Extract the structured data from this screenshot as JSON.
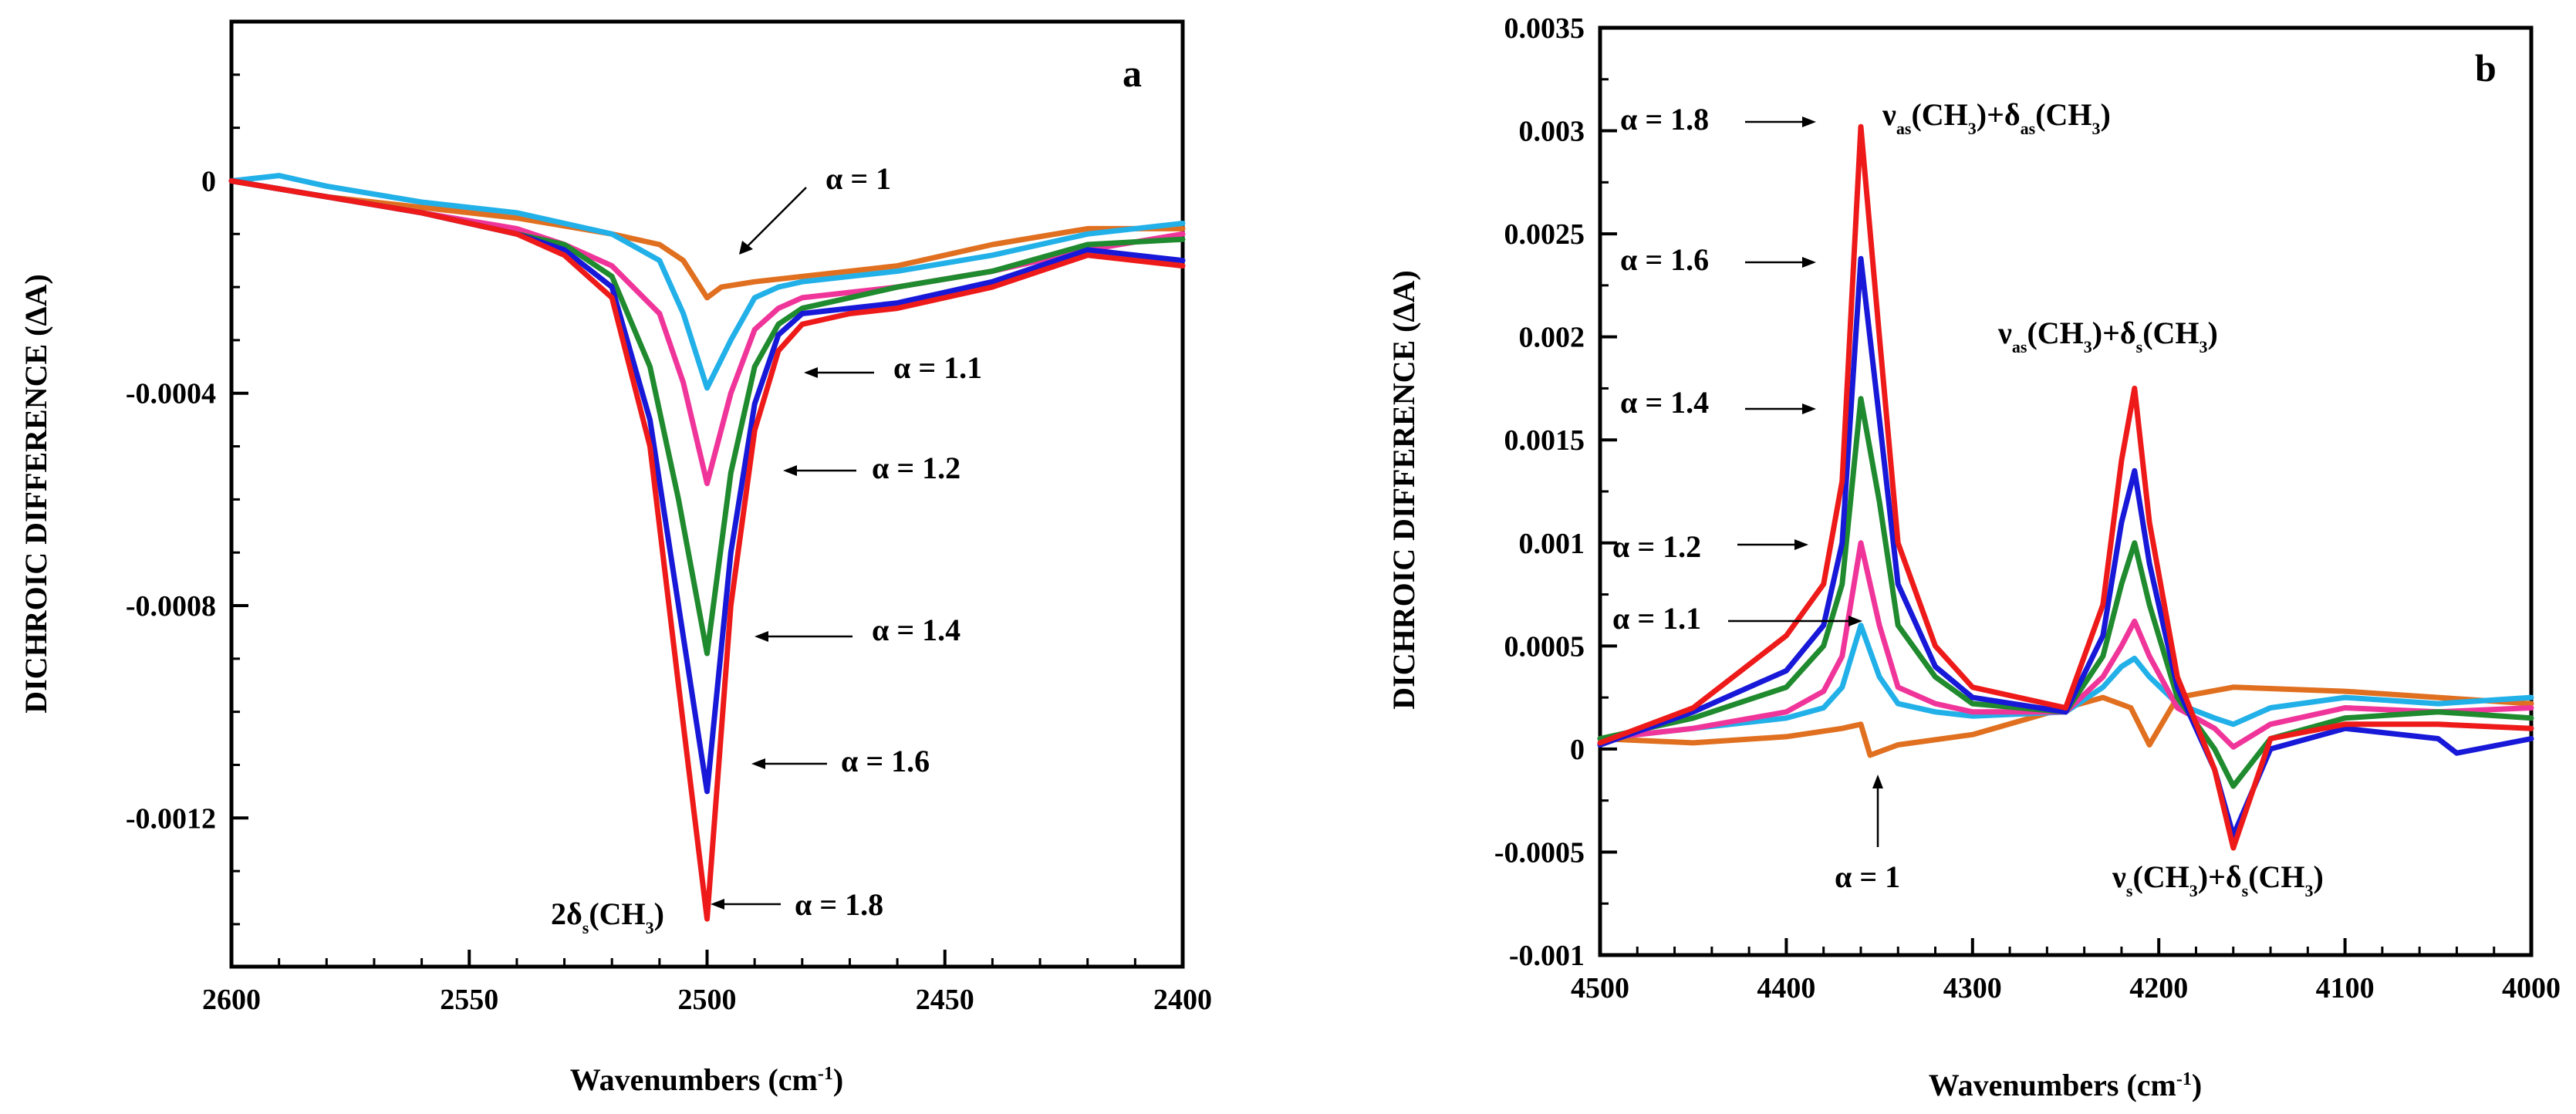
{
  "chart_data": [
    {
      "type": "line",
      "panel_label": "a",
      "xlabel": "Wavenumbers (cm",
      "xlabel_sup": "-1",
      "xlabel_end": ")",
      "ylabel": "DICHROIC DIFFERENCE (ΔA)",
      "xlim": [
        2600,
        2400
      ],
      "ylim": [
        -0.00148,
        0.0003
      ],
      "xticks": [
        2600,
        2550,
        2500,
        2450,
        2400
      ],
      "xtick_labels": [
        "2600",
        "2550",
        "2500",
        "2450",
        "2400"
      ],
      "yticks": [
        0,
        -0.0004,
        -0.0008,
        -0.0012
      ],
      "ytick_labels": [
        "0",
        "-0.0004",
        "-0.0008",
        "-0.0012"
      ],
      "peak_label": {
        "main": "2δ",
        "sub1": "s",
        "mid": "(CH",
        "sub2": "3",
        "end": ")"
      },
      "annotations": [
        "α = 1",
        "α = 1.1",
        "α = 1.2",
        "α = 1.4",
        "α = 1.6",
        "α = 1.8"
      ],
      "series": [
        {
          "name": "α = 1",
          "color": "#e07020",
          "x": [
            2600,
            2580,
            2560,
            2540,
            2520,
            2510,
            2505,
            2500,
            2497,
            2490,
            2480,
            2460,
            2440,
            2420,
            2400
          ],
          "values": [
            0,
            -3e-05,
            -5e-05,
            -7e-05,
            -0.0001,
            -0.00012,
            -0.00015,
            -0.00022,
            -0.0002,
            -0.00019,
            -0.00018,
            -0.00016,
            -0.00012,
            -9e-05,
            -9e-05
          ]
        },
        {
          "name": "α = 1.1",
          "color": "#22b0e8",
          "x": [
            2600,
            2590,
            2580,
            2560,
            2540,
            2530,
            2520,
            2510,
            2505,
            2500,
            2495,
            2490,
            2485,
            2480,
            2470,
            2460,
            2440,
            2420,
            2400
          ],
          "values": [
            0,
            1e-05,
            -1e-05,
            -4e-05,
            -6e-05,
            -8e-05,
            -0.0001,
            -0.00015,
            -0.00025,
            -0.00039,
            -0.0003,
            -0.00022,
            -0.0002,
            -0.00019,
            -0.00018,
            -0.00017,
            -0.00014,
            -0.0001,
            -8e-05
          ]
        },
        {
          "name": "α = 1.2",
          "color": "#f0359a",
          "x": [
            2600,
            2580,
            2560,
            2540,
            2530,
            2520,
            2510,
            2505,
            2500,
            2495,
            2490,
            2485,
            2480,
            2470,
            2460,
            2440,
            2420,
            2400
          ],
          "values": [
            0,
            -3e-05,
            -6e-05,
            -9e-05,
            -0.00012,
            -0.00016,
            -0.00025,
            -0.00038,
            -0.00057,
            -0.0004,
            -0.00028,
            -0.00024,
            -0.00022,
            -0.00021,
            -0.0002,
            -0.00017,
            -0.00013,
            -0.0001
          ]
        },
        {
          "name": "α = 1.4",
          "color": "#1f8a2e",
          "x": [
            2600,
            2580,
            2560,
            2540,
            2530,
            2520,
            2512,
            2506,
            2500,
            2495,
            2490,
            2485,
            2480,
            2470,
            2460,
            2440,
            2420,
            2400
          ],
          "values": [
            0,
            -3e-05,
            -6e-05,
            -0.0001,
            -0.00012,
            -0.00018,
            -0.00035,
            -0.0006,
            -0.00089,
            -0.00055,
            -0.00035,
            -0.00027,
            -0.00024,
            -0.00022,
            -0.0002,
            -0.00017,
            -0.00012,
            -0.00011
          ]
        },
        {
          "name": "α = 1.6",
          "color": "#1818d8",
          "x": [
            2600,
            2580,
            2560,
            2540,
            2530,
            2520,
            2512,
            2506,
            2500,
            2495,
            2490,
            2485,
            2480,
            2470,
            2460,
            2440,
            2420,
            2400
          ],
          "values": [
            0,
            -3e-05,
            -6e-05,
            -0.0001,
            -0.00013,
            -0.0002,
            -0.00045,
            -0.0008,
            -0.00115,
            -0.0007,
            -0.00042,
            -0.00029,
            -0.00025,
            -0.00024,
            -0.00023,
            -0.00019,
            -0.00013,
            -0.00015
          ]
        },
        {
          "name": "α = 1.8",
          "color": "#ee1a1a",
          "x": [
            2600,
            2580,
            2560,
            2540,
            2530,
            2520,
            2512,
            2506,
            2500,
            2495,
            2490,
            2485,
            2480,
            2470,
            2460,
            2440,
            2420,
            2400
          ],
          "values": [
            0,
            -3e-05,
            -6e-05,
            -0.0001,
            -0.00014,
            -0.00022,
            -0.0005,
            -0.00095,
            -0.00139,
            -0.0008,
            -0.00047,
            -0.00032,
            -0.00027,
            -0.00025,
            -0.00024,
            -0.0002,
            -0.00014,
            -0.00016
          ]
        }
      ]
    },
    {
      "type": "line",
      "panel_label": "b",
      "xlabel": "Wavenumbers (cm",
      "xlabel_sup": "-1",
      "xlabel_end": ")",
      "ylabel": "DICHROIC DIFFERENCE (ΔA)",
      "xlim": [
        4500,
        4000
      ],
      "ylim": [
        -0.001,
        0.0035
      ],
      "xticks": [
        4500,
        4400,
        4300,
        4200,
        4100,
        4000
      ],
      "xtick_labels": [
        "4500",
        "4400",
        "4300",
        "4200",
        "4100",
        "4000"
      ],
      "yticks": [
        -0.001,
        -0.0005,
        0,
        0.0005,
        0.001,
        0.0015,
        0.002,
        0.0025,
        0.003,
        0.0035
      ],
      "ytick_labels": [
        "-0.001",
        "-0.0005",
        "0",
        "0.0005",
        "0.001",
        "0.0015",
        "0.002",
        "0.0025",
        "0.003",
        "0.0035"
      ],
      "peak_labels": [
        {
          "main": "ν",
          "sub1": "as",
          "mid": "(CH",
          "sub2": "3",
          "end": ")+δ",
          "sub3": "as",
          "mid2": "(CH",
          "sub4": "3",
          "end2": ")"
        },
        {
          "main": "ν",
          "sub1": "as",
          "mid": "(CH",
          "sub2": "3",
          "end": ")+δ",
          "sub3": "s",
          "mid2": "(CH",
          "sub4": "3",
          "end2": ")"
        },
        {
          "main": "ν",
          "sub1": "s",
          "mid": "(CH",
          "sub2": "3",
          "end": ")+δ",
          "sub3": "s",
          "mid2": "(CH",
          "sub4": "3",
          "end2": ")"
        }
      ],
      "annotations": [
        "α = 1.8",
        "α = 1.6",
        "α = 1.4",
        "α = 1.2",
        "α = 1.1",
        "α = 1"
      ],
      "series": [
        {
          "name": "α = 1",
          "color": "#e07020",
          "x": [
            4500,
            4450,
            4400,
            4370,
            4360,
            4355,
            4340,
            4300,
            4250,
            4230,
            4215,
            4205,
            4190,
            4160,
            4100,
            4050,
            4000
          ],
          "values": [
            5e-05,
            3e-05,
            6e-05,
            0.0001,
            0.00012,
            -3e-05,
            2e-05,
            7e-05,
            0.0002,
            0.00025,
            0.0002,
            2e-05,
            0.00025,
            0.0003,
            0.00028,
            0.00025,
            0.00022
          ]
        },
        {
          "name": "α = 1.1",
          "color": "#22b0e8",
          "x": [
            4500,
            4450,
            4400,
            4380,
            4370,
            4360,
            4350,
            4340,
            4320,
            4300,
            4250,
            4230,
            4220,
            4213,
            4205,
            4190,
            4170,
            4160,
            4140,
            4100,
            4050,
            4000
          ],
          "values": [
            5e-05,
            0.0001,
            0.00015,
            0.0002,
            0.0003,
            0.0006,
            0.00035,
            0.00022,
            0.00018,
            0.00016,
            0.00018,
            0.0003,
            0.0004,
            0.00044,
            0.00035,
            0.00022,
            0.00015,
            0.00012,
            0.0002,
            0.00025,
            0.00022,
            0.00025
          ]
        },
        {
          "name": "α = 1.2",
          "color": "#f0359a",
          "x": [
            4500,
            4450,
            4400,
            4380,
            4370,
            4360,
            4350,
            4340,
            4320,
            4300,
            4250,
            4230,
            4220,
            4213,
            4205,
            4190,
            4170,
            4160,
            4140,
            4100,
            4050,
            4000
          ],
          "values": [
            5e-05,
            0.0001,
            0.00018,
            0.00028,
            0.00045,
            0.001,
            0.0006,
            0.0003,
            0.00022,
            0.00018,
            0.00018,
            0.00035,
            0.0005,
            0.00062,
            0.00045,
            0.0002,
            0.0001,
            1e-05,
            0.00012,
            0.0002,
            0.00018,
            0.0002
          ]
        },
        {
          "name": "α = 1.4",
          "color": "#1f8a2e",
          "x": [
            4500,
            4450,
            4400,
            4380,
            4370,
            4360,
            4350,
            4340,
            4320,
            4300,
            4250,
            4230,
            4220,
            4213,
            4205,
            4190,
            4170,
            4160,
            4140,
            4100,
            4050,
            4000
          ],
          "values": [
            5e-05,
            0.00015,
            0.0003,
            0.0005,
            0.0008,
            0.0017,
            0.0012,
            0.0006,
            0.00035,
            0.00022,
            0.00018,
            0.00045,
            0.0008,
            0.001,
            0.0007,
            0.00025,
            0.0,
            -0.00018,
            5e-05,
            0.00015,
            0.00018,
            0.00015
          ]
        },
        {
          "name": "α = 1.6",
          "color": "#1818d8",
          "x": [
            4500,
            4450,
            4400,
            4380,
            4370,
            4360,
            4350,
            4340,
            4320,
            4300,
            4250,
            4230,
            4220,
            4213,
            4205,
            4190,
            4170,
            4160,
            4140,
            4100,
            4050,
            4040,
            4000
          ],
          "values": [
            2e-05,
            0.00018,
            0.00038,
            0.0006,
            0.001,
            0.00238,
            0.0016,
            0.0008,
            0.0004,
            0.00025,
            0.00018,
            0.00055,
            0.0011,
            0.00135,
            0.0009,
            0.0003,
            -0.0001,
            -0.00042,
            0.0,
            0.0001,
            5e-05,
            -2e-05,
            5e-05
          ]
        },
        {
          "name": "α = 1.8",
          "color": "#ee1a1a",
          "x": [
            4500,
            4450,
            4400,
            4380,
            4370,
            4360,
            4350,
            4340,
            4320,
            4300,
            4250,
            4230,
            4220,
            4213,
            4205,
            4190,
            4170,
            4160,
            4140,
            4100,
            4050,
            4000
          ],
          "values": [
            3e-05,
            0.0002,
            0.00055,
            0.0008,
            0.0013,
            0.00302,
            0.002,
            0.001,
            0.0005,
            0.0003,
            0.0002,
            0.0007,
            0.0014,
            0.00175,
            0.0011,
            0.00035,
            -0.0001,
            -0.00048,
            5e-05,
            0.00012,
            0.00012,
            0.0001
          ]
        }
      ]
    }
  ]
}
